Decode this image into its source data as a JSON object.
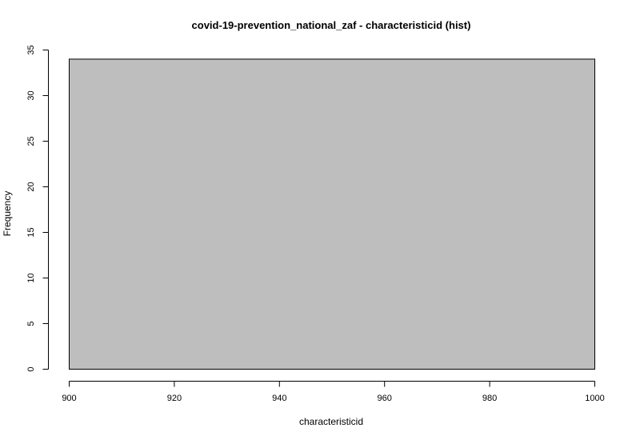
{
  "chart_data": {
    "type": "bar",
    "title": "covid-19-prevention_national_zaf - characteristicid (hist)",
    "xlabel": "characteristicid",
    "ylabel": "Frequency",
    "bins": [
      {
        "x_start": 900,
        "x_end": 1000,
        "count": 34
      }
    ],
    "xlim": [
      900,
      1000
    ],
    "ylim": [
      0,
      35
    ],
    "x_ticks": [
      900,
      920,
      940,
      960,
      980,
      1000
    ],
    "y_ticks": [
      0,
      5,
      10,
      15,
      20,
      25,
      30,
      35
    ],
    "bar_color": "#bebebe",
    "grid": false,
    "legend": "none"
  }
}
